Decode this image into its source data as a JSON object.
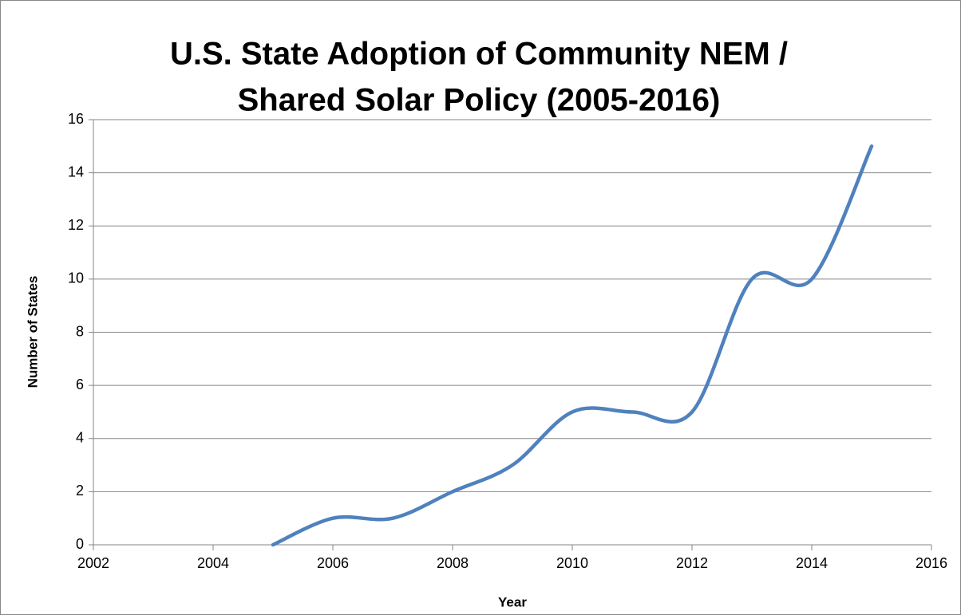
{
  "chart_data": {
    "type": "line",
    "title": [
      "U.S. State Adoption of Community NEM /",
      "Shared Solar Policy (2005-2016)"
    ],
    "x_label": "Year",
    "y_label": "Number of States",
    "x": [
      2005,
      2006,
      2007,
      2008,
      2009,
      2010,
      2011,
      2012,
      2013,
      2014,
      2015
    ],
    "series": [
      {
        "name": "Number of States",
        "color": "#4f81bd",
        "values": [
          0,
          1,
          1,
          2,
          3,
          5,
          5,
          5,
          10,
          10,
          15
        ]
      }
    ],
    "xlim": [
      2002,
      2016
    ],
    "xticks": [
      2002,
      2004,
      2006,
      2008,
      2010,
      2012,
      2014,
      2016
    ],
    "ylim": [
      0,
      16
    ],
    "yticks": [
      0,
      2,
      4,
      6,
      8,
      10,
      12,
      14,
      16
    ],
    "grid": true,
    "smooth": true
  }
}
